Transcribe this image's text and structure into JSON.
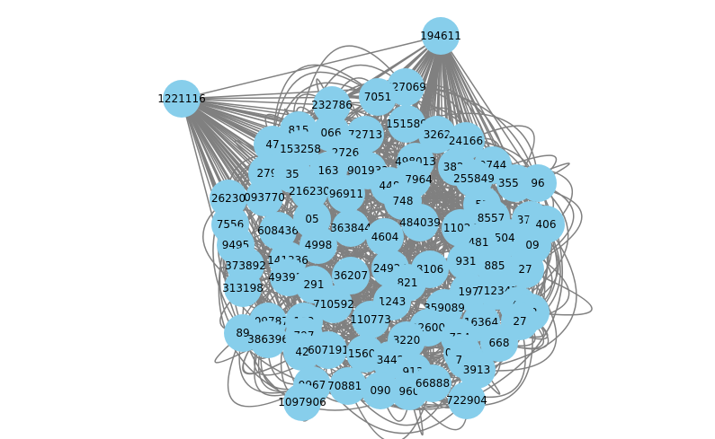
{
  "diagram": {
    "type": "network-graph",
    "node_color": "#87ceeb",
    "edge_color": "#808080",
    "label_color": "#000000",
    "background": "#ffffff",
    "hub_nodes": [
      "1221116",
      "194611"
    ],
    "nodes": [
      "194611",
      "1221116",
      "627069",
      "232786",
      "7051",
      "151589",
      "815",
      "066",
      "72713",
      "3262",
      "24166",
      "47",
      "153258",
      "2726",
      "498013",
      "3823",
      "9744",
      "279",
      "35",
      "163",
      "901933",
      "157964",
      "255849",
      "35589",
      "96",
      "26230",
      "093770",
      "216230",
      "96911",
      "448",
      "748",
      "55",
      "7556",
      "8557",
      "3710",
      "406",
      "608436",
      "05",
      "363844",
      "484039",
      "11024",
      "250448",
      "09",
      "9495",
      "4998",
      "4604",
      "481",
      "141336",
      "373892",
      "493915",
      "36207",
      "24924",
      "8106",
      "931",
      "885",
      "27",
      "313198",
      "291",
      "821",
      "197",
      "712345",
      "710592",
      "1243",
      "359089",
      "41",
      "62",
      "809787",
      "192",
      "110773",
      "1226000",
      "16364",
      "27",
      "89",
      "386396",
      "797",
      "3220",
      "734",
      "668",
      "42",
      "607191",
      "15608",
      "09997",
      "786",
      "3442",
      "913",
      "3913",
      "9967",
      "708814",
      "090",
      "960",
      "66888",
      "722904",
      "1097906"
    ]
  }
}
